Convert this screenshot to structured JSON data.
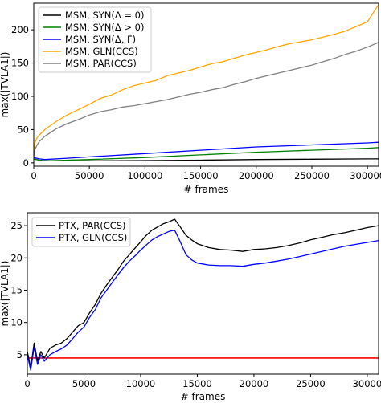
{
  "chart_data": [
    {
      "type": "line",
      "xlabel": "# frames",
      "ylabel": "max(|TVLA1|)",
      "xlim": [
        0,
        310000
      ],
      "ylim": [
        -5,
        240
      ],
      "xticks": [
        0,
        50000,
        100000,
        150000,
        200000,
        250000,
        300000
      ],
      "yticks": [
        0,
        50,
        100,
        150,
        200
      ],
      "legend_position": "upper-left",
      "grid": false,
      "series": [
        {
          "name": "MSM, SYN(Δ = 0)",
          "color": "#000000",
          "x": [
            0,
            5000,
            10000,
            30000,
            50000,
            100000,
            150000,
            200000,
            250000,
            300000,
            310000
          ],
          "y": [
            6,
            4,
            3,
            3,
            3,
            3.5,
            4,
            5,
            5.5,
            6,
            6
          ]
        },
        {
          "name": "MSM, SYN(Δ > 0)",
          "color": "#008000",
          "x": [
            0,
            5000,
            10000,
            30000,
            50000,
            100000,
            150000,
            200000,
            250000,
            300000,
            310000
          ],
          "y": [
            6,
            4,
            3,
            4,
            5,
            8,
            12,
            16,
            19,
            22,
            23
          ]
        },
        {
          "name": "MSM, SYN(Δ, F)",
          "color": "#0000ff",
          "x": [
            0,
            5000,
            10000,
            30000,
            50000,
            100000,
            150000,
            200000,
            250000,
            300000,
            310000
          ],
          "y": [
            8,
            6,
            5,
            7,
            9,
            14,
            19,
            24,
            27,
            30,
            31
          ]
        },
        {
          "name": "MSM, GLN(CCS)",
          "color": "#ffa500",
          "x": [
            0,
            1000,
            3000,
            5000,
            10000,
            20000,
            30000,
            40000,
            50000,
            60000,
            70000,
            80000,
            90000,
            100000,
            110000,
            120000,
            130000,
            140000,
            150000,
            160000,
            170000,
            180000,
            190000,
            200000,
            210000,
            220000,
            230000,
            240000,
            250000,
            260000,
            270000,
            280000,
            290000,
            300000,
            305000,
            310000
          ],
          "y": [
            15,
            30,
            38,
            42,
            50,
            62,
            72,
            80,
            88,
            97,
            102,
            110,
            116,
            120,
            124,
            131,
            135,
            139,
            144,
            149,
            152,
            157,
            162,
            166,
            170,
            175,
            179,
            182,
            185,
            189,
            193,
            198,
            205,
            212,
            225,
            238
          ]
        },
        {
          "name": "MSM, PAR(CCS)",
          "color": "#808080",
          "x": [
            0,
            1000,
            3000,
            5000,
            10000,
            20000,
            30000,
            40000,
            50000,
            60000,
            70000,
            80000,
            90000,
            100000,
            110000,
            120000,
            130000,
            140000,
            150000,
            160000,
            170000,
            180000,
            190000,
            200000,
            210000,
            220000,
            230000,
            240000,
            250000,
            260000,
            270000,
            280000,
            290000,
            300000,
            310000
          ],
          "y": [
            10,
            20,
            27,
            32,
            40,
            51,
            59,
            65,
            72,
            77,
            80,
            84,
            86,
            89,
            92,
            95,
            99,
            103,
            106,
            110,
            113,
            118,
            122,
            127,
            131,
            135,
            139,
            143,
            147,
            152,
            157,
            163,
            168,
            174,
            181
          ]
        }
      ]
    },
    {
      "type": "line",
      "xlabel": "# frames",
      "ylabel": "max(|TVLA1|)",
      "xlim": [
        0,
        31000
      ],
      "ylim": [
        2,
        27
      ],
      "xticks": [
        0,
        5000,
        10000,
        15000,
        20000,
        25000,
        30000
      ],
      "yticks": [
        5,
        10,
        15,
        20,
        25
      ],
      "legend_position": "upper-left",
      "grid": false,
      "threshold": {
        "value": 4.5,
        "color": "#ff0000"
      },
      "series": [
        {
          "name": "PTX, PAR(CCS)",
          "color": "#000000",
          "x": [
            0,
            300,
            600,
            900,
            1200,
            1500,
            2000,
            2500,
            3000,
            3500,
            4000,
            4500,
            5000,
            5500,
            6000,
            6500,
            7000,
            7500,
            8000,
            8500,
            9000,
            9500,
            10000,
            10500,
            11000,
            11500,
            12000,
            12500,
            13000,
            13500,
            14000,
            14500,
            15000,
            16000,
            17000,
            18000,
            19000,
            20000,
            21000,
            22000,
            23000,
            24000,
            25000,
            26000,
            27000,
            28000,
            29000,
            30000,
            31000
          ],
          "y": [
            5.5,
            3.0,
            6.8,
            4.0,
            5.5,
            4.5,
            6.0,
            6.5,
            6.8,
            7.5,
            8.5,
            9.5,
            10.0,
            11.5,
            12.8,
            14.5,
            15.8,
            17.0,
            18.2,
            19.5,
            20.5,
            21.5,
            22.5,
            23.5,
            24.3,
            24.8,
            25.3,
            25.6,
            26.0,
            24.8,
            23.5,
            22.8,
            22.2,
            21.6,
            21.3,
            21.2,
            21.0,
            21.3,
            21.4,
            21.6,
            21.9,
            22.3,
            22.8,
            23.2,
            23.6,
            23.9,
            24.3,
            24.7,
            25.0
          ]
        },
        {
          "name": "PTX, GLN(CCS)",
          "color": "#0000ff",
          "x": [
            0,
            300,
            600,
            900,
            1200,
            1500,
            2000,
            2500,
            3000,
            3500,
            4000,
            4500,
            5000,
            5500,
            6000,
            6500,
            7000,
            7500,
            8000,
            8500,
            9000,
            9500,
            10000,
            10500,
            11000,
            11500,
            12000,
            12500,
            13000,
            13500,
            14000,
            14500,
            15000,
            16000,
            17000,
            18000,
            19000,
            20000,
            21000,
            22000,
            23000,
            24000,
            25000,
            26000,
            27000,
            28000,
            29000,
            30000,
            31000
          ],
          "y": [
            5.0,
            2.6,
            6.2,
            3.5,
            5.0,
            4.0,
            5.0,
            5.5,
            5.9,
            6.5,
            7.5,
            8.5,
            9.3,
            10.8,
            12.0,
            13.8,
            15.0,
            16.2,
            17.4,
            18.5,
            19.5,
            20.3,
            21.2,
            22.0,
            22.8,
            23.3,
            23.7,
            24.1,
            24.3,
            22.5,
            20.5,
            19.7,
            19.2,
            18.9,
            18.8,
            18.8,
            18.7,
            19.0,
            19.2,
            19.5,
            19.8,
            20.2,
            20.6,
            21.0,
            21.4,
            21.8,
            22.1,
            22.4,
            22.7
          ]
        }
      ]
    }
  ]
}
